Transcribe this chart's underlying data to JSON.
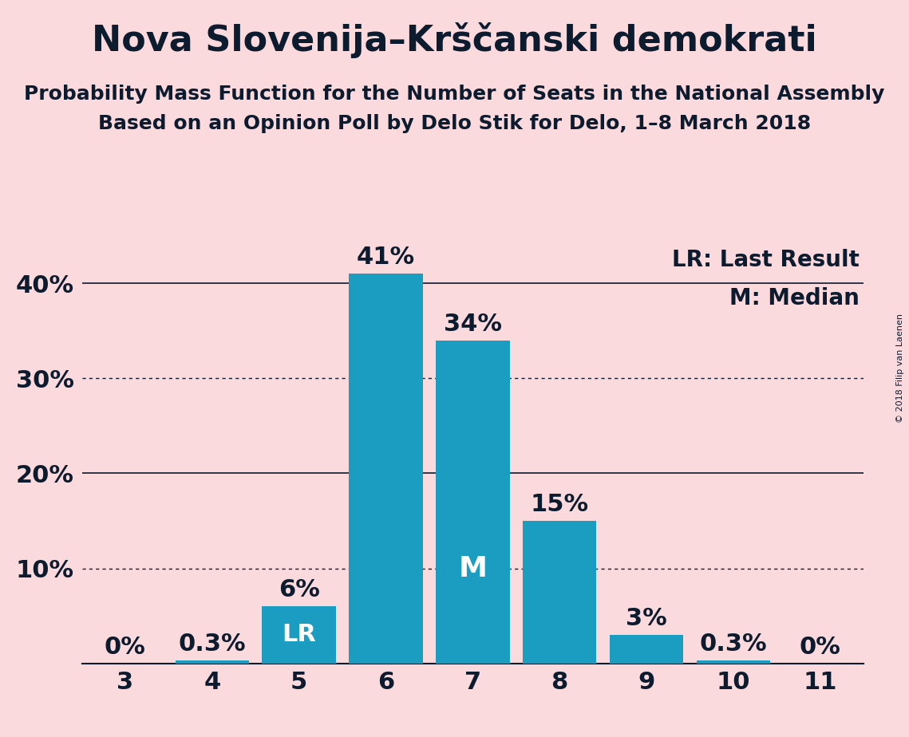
{
  "title": "Nova Slovenija–Krščanski demokrati",
  "subtitle1": "Probability Mass Function for the Number of Seats in the National Assembly",
  "subtitle2": "Based on an Opinion Poll by Delo Stik for Delo, 1–8 March 2018",
  "copyright": "© 2018 Filip van Laenen",
  "categories": [
    3,
    4,
    5,
    6,
    7,
    8,
    9,
    10,
    11
  ],
  "values": [
    0.0,
    0.3,
    6.0,
    41.0,
    34.0,
    15.0,
    3.0,
    0.3,
    0.0
  ],
  "bar_color": "#1a9dc0",
  "background_color": "#fadadd",
  "bar_labels": [
    "0%",
    "0.3%",
    "6%",
    "41%",
    "34%",
    "15%",
    "3%",
    "0.3%",
    "0%"
  ],
  "lr_index": 2,
  "median_index": 4,
  "lr_label": "LR",
  "median_label": "M",
  "legend_lr": "LR: Last Result",
  "legend_m": "M: Median",
  "ylim": [
    0,
    45
  ],
  "yticks": [
    0,
    10,
    20,
    30,
    40
  ],
  "ytick_labels": [
    "",
    "10%",
    "20%",
    "30%",
    "40%"
  ],
  "dotted_lines": [
    10,
    30
  ],
  "solid_lines": [
    20,
    40
  ],
  "title_fontsize": 32,
  "subtitle_fontsize": 18,
  "bar_label_fontsize": 22,
  "axis_label_fontsize": 22,
  "legend_fontsize": 20,
  "inner_label_color": "#ffffff",
  "outer_label_color": "#0d1b2e"
}
